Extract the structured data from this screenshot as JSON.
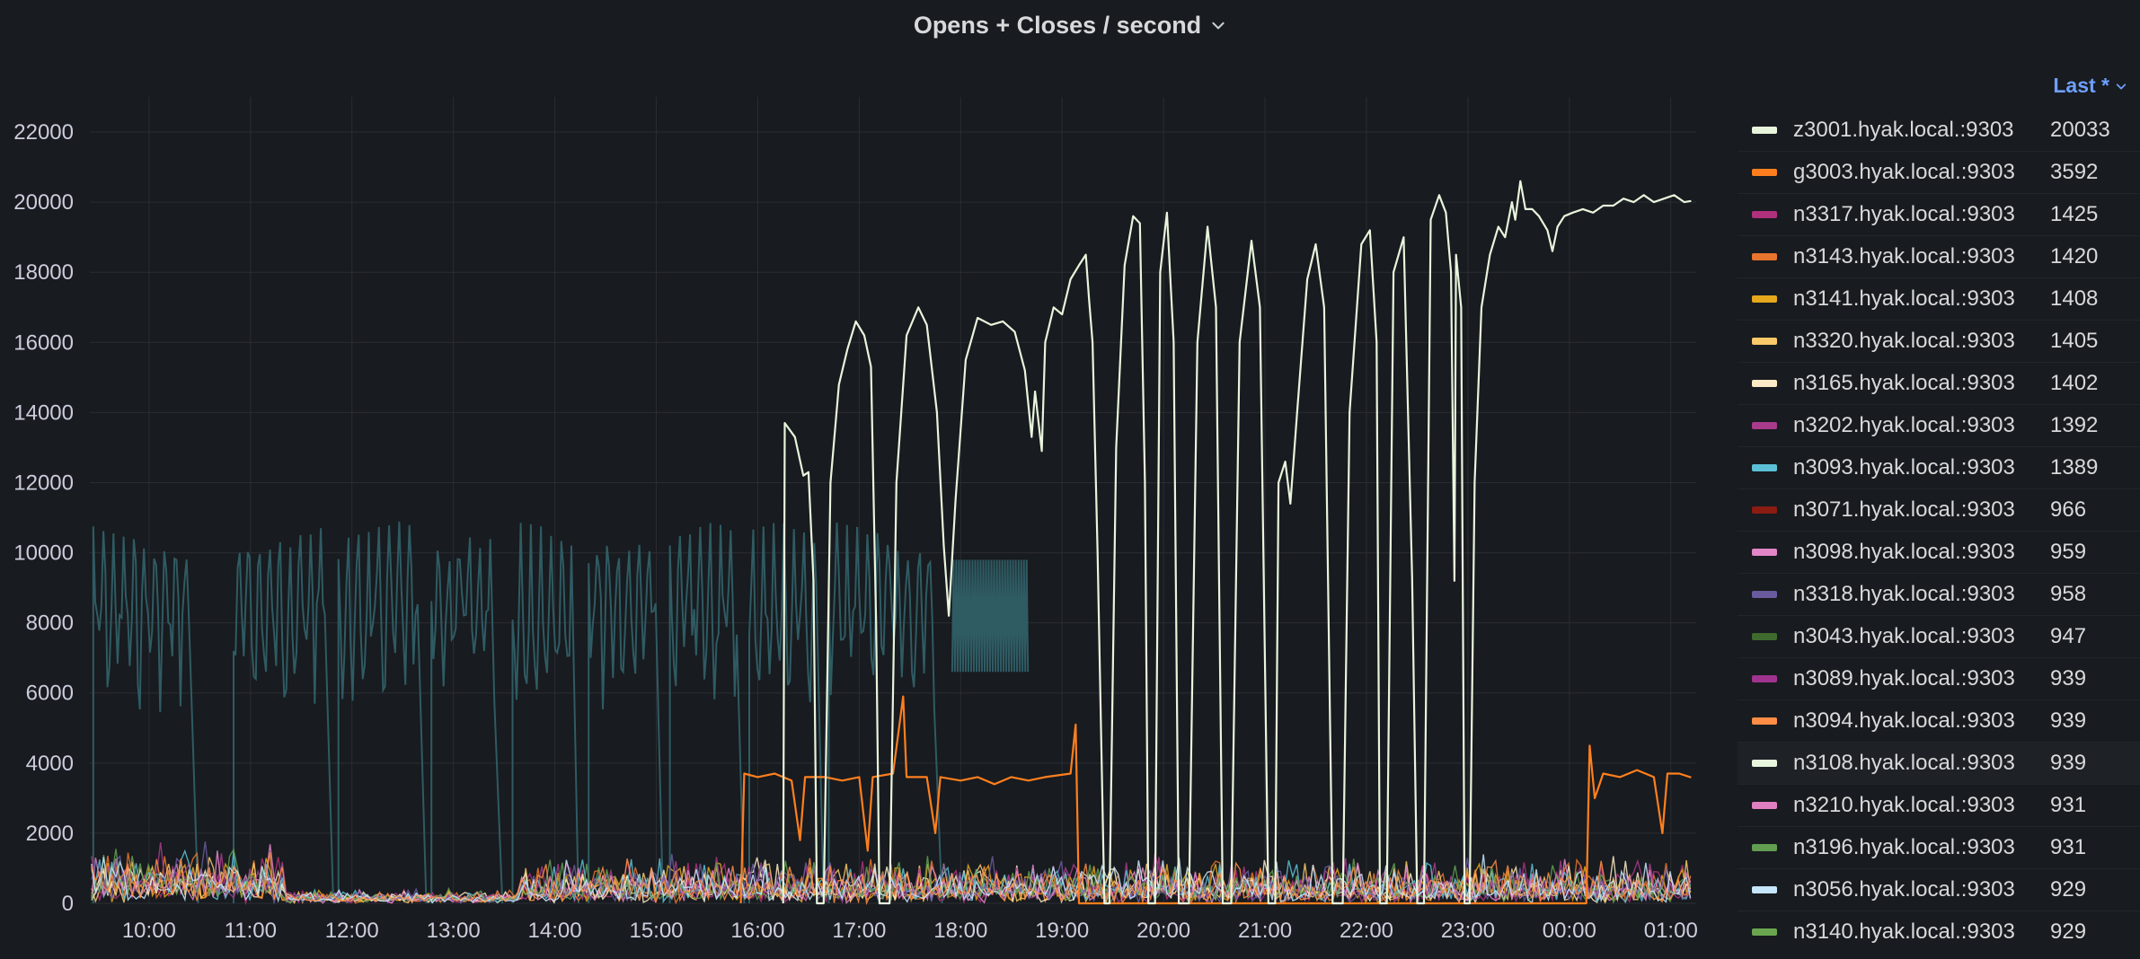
{
  "panel": {
    "title": "Opens + Closes / second",
    "title_icon": "chevron-down-icon"
  },
  "legend": {
    "header_label": "Last *",
    "header_icon": "chevron-down-icon",
    "items": [
      {
        "name": "z3001.hyak.local.:9303",
        "value": "20033",
        "color": "#e8f5dc"
      },
      {
        "name": "g3003.hyak.local.:9303",
        "value": "3592",
        "color": "#ff7f1e"
      },
      {
        "name": "n3317.hyak.local.:9303",
        "value": "1425",
        "color": "#b0307c"
      },
      {
        "name": "n3143.hyak.local.:9303",
        "value": "1420",
        "color": "#e8752d"
      },
      {
        "name": "n3141.hyak.local.:9303",
        "value": "1408",
        "color": "#e5a81c"
      },
      {
        "name": "n3320.hyak.local.:9303",
        "value": "1405",
        "color": "#f9c96a"
      },
      {
        "name": "n3165.hyak.local.:9303",
        "value": "1402",
        "color": "#fceac6"
      },
      {
        "name": "n3202.hyak.local.:9303",
        "value": "1392",
        "color": "#a83b8b"
      },
      {
        "name": "n3093.hyak.local.:9303",
        "value": "1389",
        "color": "#5cbfd6"
      },
      {
        "name": "n3071.hyak.local.:9303",
        "value": "966",
        "color": "#8a1c12"
      },
      {
        "name": "n3098.hyak.local.:9303",
        "value": "959",
        "color": "#e286c8"
      },
      {
        "name": "n3318.hyak.local.:9303",
        "value": "958",
        "color": "#6a5a9e"
      },
      {
        "name": "n3043.hyak.local.:9303",
        "value": "947",
        "color": "#3f6b2e"
      },
      {
        "name": "n3089.hyak.local.:9303",
        "value": "939",
        "color": "#a0338e"
      },
      {
        "name": "n3094.hyak.local.:9303",
        "value": "939",
        "color": "#ff8d45"
      },
      {
        "name": "n3108.hyak.local.:9303",
        "value": "939",
        "color": "#e8f6dd"
      },
      {
        "name": "n3210.hyak.local.:9303",
        "value": "931",
        "color": "#e07fc2"
      },
      {
        "name": "n3196.hyak.local.:9303",
        "value": "931",
        "color": "#629e51"
      },
      {
        "name": "n3056.hyak.local.:9303",
        "value": "929",
        "color": "#c6e6fb"
      },
      {
        "name": "n3140.hyak.local.:9303",
        "value": "929",
        "color": "#6aa64f"
      }
    ]
  },
  "chart_data": {
    "type": "line",
    "title": "Opens + Closes / second",
    "y_ticks": [
      "0",
      "2000",
      "4000",
      "6000",
      "8000",
      "10000",
      "12000",
      "14000",
      "16000",
      "18000",
      "20000",
      "22000"
    ],
    "x_ticks": [
      "10:00",
      "11:00",
      "12:00",
      "13:00",
      "14:00",
      "15:00",
      "16:00",
      "17:00",
      "18:00",
      "19:00",
      "20:00",
      "21:00",
      "22:00",
      "23:00",
      "00:00",
      "01:00"
    ],
    "ylim": [
      0,
      23000
    ],
    "xlim": [
      "09:25",
      "01:15"
    ],
    "grid": true,
    "legend_position": "right",
    "series": [
      {
        "name": "z3001.hyak.local.:9303",
        "color": "#e8f5dc",
        "points": [
          [
            "16:15",
            0
          ],
          [
            "16:16",
            13700
          ],
          [
            "16:22",
            13300
          ],
          [
            "16:27",
            12200
          ],
          [
            "16:30",
            12300
          ],
          [
            "16:33",
            9200
          ],
          [
            "16:35",
            0
          ],
          [
            "16:39",
            0
          ],
          [
            "16:43",
            12000
          ],
          [
            "16:48",
            14800
          ],
          [
            "16:53",
            15800
          ],
          [
            "16:58",
            16600
          ],
          [
            "17:03",
            16200
          ],
          [
            "17:07",
            15300
          ],
          [
            "17:10",
            8000
          ],
          [
            "17:12",
            0
          ],
          [
            "17:18",
            0
          ],
          [
            "17:22",
            12000
          ],
          [
            "17:28",
            16200
          ],
          [
            "17:35",
            17000
          ],
          [
            "17:40",
            16500
          ],
          [
            "17:46",
            14000
          ],
          [
            "17:50",
            10200
          ],
          [
            "17:53",
            8200
          ],
          [
            "17:57",
            11500
          ],
          [
            "18:03",
            15500
          ],
          [
            "18:10",
            16700
          ],
          [
            "18:18",
            16500
          ],
          [
            "18:25",
            16600
          ],
          [
            "18:32",
            16300
          ],
          [
            "18:38",
            15200
          ],
          [
            "18:42",
            13300
          ],
          [
            "18:44",
            14600
          ],
          [
            "18:48",
            12900
          ],
          [
            "18:50",
            16000
          ],
          [
            "18:55",
            17000
          ],
          [
            "19:00",
            16800
          ],
          [
            "19:05",
            17800
          ],
          [
            "19:10",
            18200
          ],
          [
            "19:14",
            18500
          ],
          [
            "19:16",
            17200
          ],
          [
            "19:18",
            16000
          ],
          [
            "19:21",
            10000
          ],
          [
            "19:25",
            0
          ],
          [
            "19:28",
            0
          ],
          [
            "19:32",
            13000
          ],
          [
            "19:37",
            18200
          ],
          [
            "19:42",
            19600
          ],
          [
            "19:46",
            19400
          ],
          [
            "19:49",
            12000
          ],
          [
            "19:51",
            0
          ],
          [
            "19:55",
            0
          ],
          [
            "19:58",
            18000
          ],
          [
            "20:02",
            19700
          ],
          [
            "20:06",
            16000
          ],
          [
            "20:09",
            0
          ],
          [
            "20:15",
            0
          ],
          [
            "20:20",
            16000
          ],
          [
            "20:26",
            19300
          ],
          [
            "20:31",
            17000
          ],
          [
            "20:35",
            0
          ],
          [
            "20:40",
            0
          ],
          [
            "20:45",
            16000
          ],
          [
            "20:52",
            18900
          ],
          [
            "20:57",
            17000
          ],
          [
            "21:02",
            0
          ],
          [
            "21:06",
            0
          ],
          [
            "21:08",
            12000
          ],
          [
            "21:12",
            12600
          ],
          [
            "21:15",
            11400
          ],
          [
            "21:19",
            14000
          ],
          [
            "21:25",
            17800
          ],
          [
            "21:30",
            18800
          ],
          [
            "21:35",
            17000
          ],
          [
            "21:40",
            0
          ],
          [
            "21:46",
            0
          ],
          [
            "21:50",
            14000
          ],
          [
            "21:57",
            18800
          ],
          [
            "22:02",
            19200
          ],
          [
            "22:06",
            16000
          ],
          [
            "22:08",
            0
          ],
          [
            "22:12",
            0
          ],
          [
            "22:16",
            18000
          ],
          [
            "22:22",
            19000
          ],
          [
            "22:27",
            9300
          ],
          [
            "22:30",
            0
          ],
          [
            "22:34",
            0
          ],
          [
            "22:38",
            19500
          ],
          [
            "22:43",
            20200
          ],
          [
            "22:47",
            19700
          ],
          [
            "22:50",
            18000
          ],
          [
            "22:52",
            9200
          ],
          [
            "22:53",
            18500
          ],
          [
            "22:56",
            17000
          ],
          [
            "22:58",
            0
          ],
          [
            "23:01",
            0
          ],
          [
            "23:04",
            12000
          ],
          [
            "23:08",
            17000
          ],
          [
            "23:13",
            18500
          ],
          [
            "23:18",
            19300
          ],
          [
            "23:22",
            19000
          ],
          [
            "23:26",
            20000
          ],
          [
            "23:28",
            19500
          ],
          [
            "23:31",
            20600
          ],
          [
            "23:34",
            19800
          ],
          [
            "23:38",
            19800
          ],
          [
            "23:42",
            19600
          ],
          [
            "23:47",
            19200
          ],
          [
            "23:50",
            18600
          ],
          [
            "23:53",
            19300
          ],
          [
            "23:57",
            19600
          ],
          [
            "00:02",
            19700
          ],
          [
            "00:08",
            19800
          ],
          [
            "00:14",
            19700
          ],
          [
            "00:20",
            19900
          ],
          [
            "00:26",
            19900
          ],
          [
            "00:32",
            20100
          ],
          [
            "00:38",
            20000
          ],
          [
            "00:44",
            20200
          ],
          [
            "00:50",
            20000
          ],
          [
            "00:56",
            20100
          ],
          [
            "01:02",
            20200
          ],
          [
            "01:08",
            20000
          ],
          [
            "01:12",
            20033
          ]
        ]
      },
      {
        "name": "g3003.hyak.local.:9303",
        "color": "#ff7f1e",
        "points": [
          [
            "15:50",
            0
          ],
          [
            "15:52",
            3700
          ],
          [
            "16:00",
            3600
          ],
          [
            "16:10",
            3700
          ],
          [
            "16:20",
            3500
          ],
          [
            "16:25",
            1800
          ],
          [
            "16:28",
            3600
          ],
          [
            "16:40",
            3600
          ],
          [
            "16:50",
            3500
          ],
          [
            "17:00",
            3600
          ],
          [
            "17:05",
            1500
          ],
          [
            "17:08",
            3600
          ],
          [
            "17:20",
            3700
          ],
          [
            "17:26",
            5900
          ],
          [
            "17:28",
            3600
          ],
          [
            "17:40",
            3600
          ],
          [
            "17:45",
            2000
          ],
          [
            "17:48",
            3600
          ],
          [
            "18:00",
            3500
          ],
          [
            "18:10",
            3600
          ],
          [
            "18:20",
            3400
          ],
          [
            "18:30",
            3600
          ],
          [
            "18:40",
            3500
          ],
          [
            "18:50",
            3600
          ],
          [
            "19:05",
            3700
          ],
          [
            "19:08",
            5100
          ],
          [
            "19:10",
            0
          ],
          [
            "20:00",
            0
          ],
          [
            "23:30",
            0
          ],
          [
            "00:10",
            0
          ],
          [
            "00:12",
            4500
          ],
          [
            "00:15",
            3000
          ],
          [
            "00:20",
            3700
          ],
          [
            "00:30",
            3600
          ],
          [
            "00:40",
            3800
          ],
          [
            "00:50",
            3600
          ],
          [
            "00:55",
            2000
          ],
          [
            "00:58",
            3700
          ],
          [
            "01:05",
            3700
          ],
          [
            "01:12",
            3592
          ]
        ]
      }
    ]
  }
}
